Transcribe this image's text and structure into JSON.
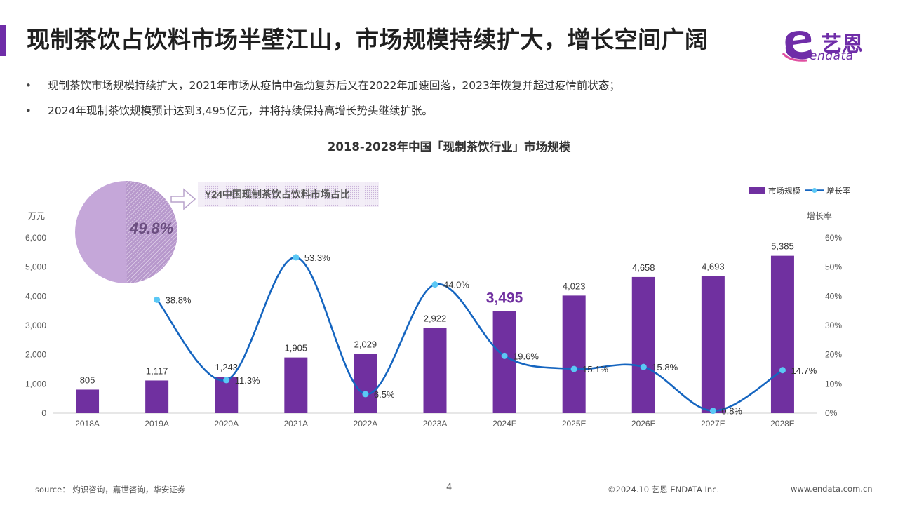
{
  "header": {
    "title": "现制茶饮占饮料市场半壁江山，市场规模持续扩大，增长空间广阔",
    "logo_cn": "艺恩",
    "logo_en": "endata"
  },
  "bullets": [
    "现制茶饮市场规模持续扩大，2021年市场从疫情中强劲复苏后又在2022年加速回落，2023年恢复并超过疫情前状态；",
    "2024年现制茶饮规模预计达到3,495亿元，并将持续保持高增长势头继续扩张。"
  ],
  "chart_data": {
    "type": "bar",
    "title": "2018-2028年中国「现制茶饮行业」市场规模",
    "categories": [
      "2018A",
      "2019A",
      "2020A",
      "2021A",
      "2022A",
      "2023A",
      "2024F",
      "2025E",
      "2026E",
      "2027E",
      "2028E"
    ],
    "series": [
      {
        "name": "市场规模",
        "type": "bar",
        "axis": "left",
        "color": "#7030a0",
        "values": [
          805,
          1117,
          1243,
          1905,
          2029,
          2922,
          3495,
          4023,
          4658,
          4693,
          5385
        ],
        "labels": [
          "805",
          "1,117",
          "1,243",
          "1,905",
          "2,029",
          "2,922",
          "3,495",
          "4,023",
          "4,658",
          "4,693",
          "5,385"
        ]
      },
      {
        "name": "增长率",
        "type": "line",
        "axis": "right",
        "color": "#1565c0",
        "marker_color": "#5bc8f5",
        "values": [
          null,
          38.8,
          11.3,
          53.3,
          6.5,
          44.0,
          19.6,
          15.1,
          15.8,
          0.8,
          14.7
        ],
        "labels": [
          "",
          "38.8%",
          "11.3%",
          "53.3%",
          "6.5%",
          "44.0%",
          "19.6%",
          "15.1%",
          "15.8%",
          "0.8%",
          "14.7%"
        ]
      }
    ],
    "highlight": {
      "index": 6,
      "color": "#7030a0"
    },
    "ylabel_left": "万元",
    "ylim_left": [
      0,
      6000
    ],
    "yticks_left": [
      "0",
      "1,000",
      "2,000",
      "3,000",
      "4,000",
      "5,000",
      "6,000"
    ],
    "ylabel_right": "增长率",
    "ylim_right": [
      0,
      60
    ],
    "yticks_right": [
      "0%",
      "10%",
      "20%",
      "30%",
      "40%",
      "50%",
      "60%"
    ],
    "legend_position": "top-right",
    "grid": false,
    "inset": {
      "type": "pie",
      "value_pct": 49.8,
      "label": "49.8%",
      "caption": "Y24中国现制茶饮占饮料市场占比",
      "colors": {
        "main": "#c5a7d9",
        "hatched": "#b798cc"
      }
    }
  },
  "footer": {
    "source": "source： 灼识咨询，嘉世咨询，华安证券",
    "page": "4",
    "copyright": "©2024.10  艺恩 ENDATA Inc.",
    "url": "www.endata.com.cn"
  }
}
